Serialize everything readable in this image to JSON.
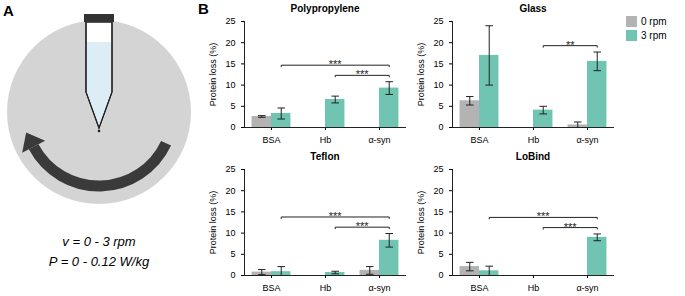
{
  "panel_a": {
    "label": "A",
    "lines": [
      "v = 0 - 3 rpm",
      "P = 0 - 0.12 W/kg"
    ]
  },
  "panel_b": {
    "label": "B",
    "legend": "top-right"
  },
  "chart_data": [
    {
      "type": "bar",
      "title": "Polypropylene",
      "y_label": "Protein loss (%)",
      "categories": [
        "BSA",
        "Hb",
        "α-syn"
      ],
      "series": [
        {
          "name": "0 rpm",
          "color": "#b3b3b3",
          "values": [
            2.6,
            null,
            null
          ],
          "errors": [
            0.2,
            null,
            null
          ]
        },
        {
          "name": "3 rpm",
          "color": "#6fc5b1",
          "values": [
            3.3,
            6.6,
            9.3
          ],
          "errors": [
            1.3,
            0.8,
            1.5
          ]
        }
      ],
      "ylim": [
        0,
        25
      ],
      "yticks": [
        0,
        5,
        10,
        15,
        20,
        25
      ],
      "significance": [
        {
          "from": "BSA",
          "to": "α-syn",
          "label": "***"
        },
        {
          "from": "Hb",
          "to": "α-syn",
          "label": "***"
        }
      ]
    },
    {
      "type": "bar",
      "title": "Glass",
      "y_label": "Protein loss (%)",
      "categories": [
        "BSA",
        "Hb",
        "α-syn"
      ],
      "series": [
        {
          "name": "0 rpm",
          "color": "#b3b3b3",
          "values": [
            6.3,
            null,
            0.6
          ],
          "errors": [
            1.0,
            null,
            0.7
          ]
        },
        {
          "name": "3 rpm",
          "color": "#6fc5b1",
          "values": [
            17.0,
            4.1,
            15.6
          ],
          "errors": [
            7.0,
            0.9,
            2.2
          ]
        }
      ],
      "ylim": [
        0,
        25
      ],
      "yticks": [
        0,
        5,
        10,
        15,
        20,
        25
      ],
      "significance": [
        {
          "from": "Hb",
          "to": "α-syn",
          "label": "**"
        }
      ]
    },
    {
      "type": "bar",
      "title": "Teflon",
      "y_label": "Protein loss (%)",
      "categories": [
        "BSA",
        "Hb",
        "α-syn"
      ],
      "series": [
        {
          "name": "0 rpm",
          "color": "#b3b3b3",
          "values": [
            0.8,
            null,
            1.2
          ],
          "errors": [
            0.6,
            null,
            0.9
          ]
        },
        {
          "name": "3 rpm",
          "color": "#6fc5b1",
          "values": [
            0.9,
            0.7,
            8.3
          ],
          "errors": [
            1.2,
            0.3,
            1.6
          ]
        }
      ],
      "ylim": [
        0,
        25
      ],
      "yticks": [
        0,
        5,
        10,
        15,
        20,
        25
      ],
      "significance": [
        {
          "from": "BSA",
          "to": "α-syn",
          "label": "***"
        },
        {
          "from": "Hb",
          "to": "α-syn",
          "label": "***"
        }
      ]
    },
    {
      "type": "bar",
      "title": "LoBind",
      "y_label": "Protein loss (%)",
      "categories": [
        "BSA",
        "Hb",
        "α-syn"
      ],
      "series": [
        {
          "name": "0 rpm",
          "color": "#b3b3b3",
          "values": [
            2.1,
            null,
            null
          ],
          "errors": [
            1.0,
            null,
            null
          ]
        },
        {
          "name": "3 rpm",
          "color": "#6fc5b1",
          "values": [
            1.1,
            null,
            9.0
          ],
          "errors": [
            1.1,
            null,
            0.8
          ]
        }
      ],
      "ylim": [
        0,
        25
      ],
      "yticks": [
        0,
        5,
        10,
        15,
        20,
        25
      ],
      "significance": [
        {
          "from": "BSA",
          "to": "α-syn",
          "label": "***"
        },
        {
          "from": "Hb",
          "to": "α-syn",
          "label": "***"
        }
      ]
    }
  ]
}
